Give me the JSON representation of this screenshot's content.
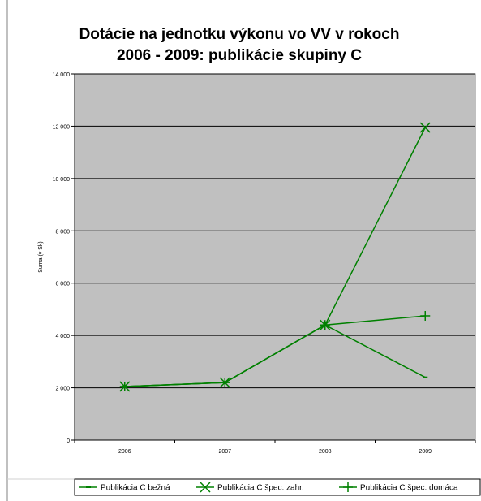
{
  "chart_data": {
    "type": "line",
    "title_line1": "Dotácie na jednotku výkonu vo VV v rokoch",
    "title_line2": "2006 - 2009: publikácie skupiny C",
    "xlabel": "",
    "ylabel": "Suma (v Sk)",
    "categories": [
      "2006",
      "2007",
      "2008",
      "2009"
    ],
    "ylim": [
      0,
      14000
    ],
    "yticks": [
      0,
      2000,
      4000,
      6000,
      8000,
      10000,
      12000,
      14000
    ],
    "ytick_labels": [
      "0",
      "2 000",
      "4 000",
      "6 000",
      "8 000",
      "10 000",
      "12 000",
      "14 000"
    ],
    "grid": true,
    "plot_background": "#c0c0c0",
    "series": [
      {
        "name": "Publikácia C bežná",
        "values": [
          2050,
          2200,
          4400,
          2400
        ],
        "marker": "dash",
        "color": "#008000"
      },
      {
        "name": "Publikácia C špec. zahr.",
        "values": [
          2050,
          2200,
          4400,
          11950
        ],
        "marker": "x",
        "color": "#008000"
      },
      {
        "name": "Publikácia C špec. domáca",
        "values": [
          2050,
          2200,
          4400,
          4750
        ],
        "marker": "plus",
        "color": "#008000"
      }
    ],
    "legend_position": "bottom"
  }
}
